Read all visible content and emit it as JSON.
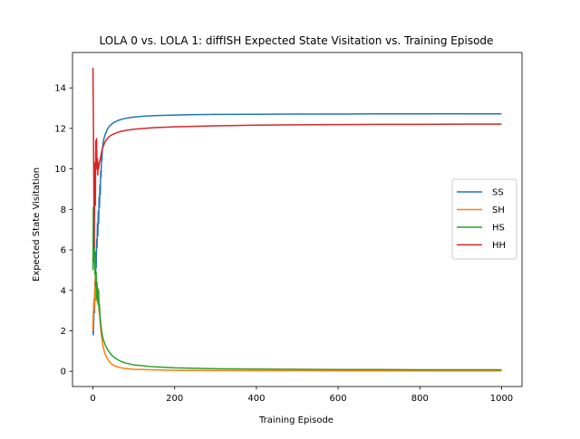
{
  "chart_data": {
    "type": "line",
    "title": "LOLA 0 vs. LOLA 1: diffISH Expected State Visitation vs. Training Episode",
    "xlabel": "Training Episode",
    "ylabel": "Expected State Visitation",
    "xlim": [
      -50,
      1050
    ],
    "ylim": [
      -0.75,
      15.75
    ],
    "xticks": [
      0,
      200,
      400,
      600,
      800,
      1000
    ],
    "yticks": [
      0,
      2,
      4,
      6,
      8,
      10,
      12,
      14
    ],
    "grid": false,
    "legend_position": "center-right",
    "series": [
      {
        "name": "SS",
        "color": "#1f77b4",
        "x": [
          0,
          1,
          2,
          3,
          4,
          5,
          6,
          7,
          8,
          9,
          10,
          11,
          12,
          13,
          14,
          15,
          16,
          17,
          18,
          19,
          20,
          21,
          22,
          23,
          24,
          25,
          27,
          30,
          35,
          40,
          45,
          50,
          60,
          70,
          80,
          90,
          100,
          120,
          150,
          200,
          250,
          300,
          400,
          500,
          600,
          700,
          800,
          900,
          1000
        ],
        "y": [
          2.1,
          1.8,
          2.5,
          3.6,
          2.9,
          4.4,
          3.8,
          5.9,
          5.1,
          6.5,
          6.1,
          7.3,
          6.7,
          7.9,
          7.3,
          8.6,
          8.1,
          9.2,
          8.7,
          9.9,
          9.6,
          10.6,
          10.4,
          11.0,
          11.1,
          11.3,
          11.5,
          11.7,
          11.95,
          12.1,
          12.2,
          12.28,
          12.38,
          12.45,
          12.5,
          12.53,
          12.56,
          12.6,
          12.63,
          12.66,
          12.68,
          12.69,
          12.7,
          12.71,
          12.71,
          12.72,
          12.72,
          12.72,
          12.72
        ]
      },
      {
        "name": "SH",
        "color": "#ff7f0e",
        "x": [
          0,
          1,
          2,
          3,
          4,
          5,
          6,
          7,
          8,
          9,
          10,
          11,
          12,
          13,
          14,
          15,
          16,
          17,
          18,
          19,
          20,
          22,
          25,
          30,
          35,
          40,
          45,
          50,
          60,
          70,
          80,
          100,
          150,
          200,
          300,
          400,
          500,
          600,
          700,
          800,
          900,
          1000
        ],
        "y": [
          2.0,
          2.9,
          3.4,
          3.0,
          3.8,
          4.1,
          4.9,
          3.5,
          4.6,
          3.9,
          4.3,
          3.4,
          3.8,
          3.3,
          3.5,
          2.9,
          3.0,
          2.5,
          2.4,
          2.1,
          1.9,
          1.6,
          1.2,
          0.85,
          0.62,
          0.48,
          0.38,
          0.3,
          0.22,
          0.17,
          0.14,
          0.1,
          0.07,
          0.05,
          0.04,
          0.03,
          0.03,
          0.02,
          0.02,
          0.02,
          0.02,
          0.02
        ]
      },
      {
        "name": "HS",
        "color": "#2ca02c",
        "x": [
          0,
          1,
          2,
          3,
          4,
          5,
          6,
          7,
          8,
          9,
          10,
          11,
          12,
          13,
          14,
          15,
          16,
          17,
          18,
          19,
          20,
          22,
          25,
          30,
          35,
          40,
          45,
          50,
          60,
          70,
          80,
          100,
          150,
          200,
          300,
          400,
          500,
          600,
          700,
          800,
          900,
          1000
        ],
        "y": [
          5.0,
          8.1,
          5.4,
          7.2,
          5.3,
          4.8,
          5.6,
          4.2,
          4.9,
          3.6,
          4.4,
          3.5,
          4.1,
          3.3,
          4.0,
          3.1,
          3.3,
          2.8,
          2.6,
          2.4,
          2.2,
          1.9,
          1.6,
          1.3,
          1.1,
          0.95,
          0.82,
          0.72,
          0.58,
          0.48,
          0.41,
          0.32,
          0.22,
          0.17,
          0.13,
          0.11,
          0.1,
          0.09,
          0.09,
          0.08,
          0.08,
          0.08
        ]
      },
      {
        "name": "HH",
        "color": "#d62728",
        "x": [
          0,
          1,
          2,
          3,
          4,
          5,
          6,
          7,
          8,
          9,
          10,
          11,
          12,
          13,
          14,
          15,
          16,
          17,
          18,
          19,
          20,
          22,
          25,
          30,
          35,
          40,
          45,
          50,
          60,
          70,
          80,
          100,
          150,
          200,
          300,
          400,
          500,
          600,
          700,
          800,
          900,
          1000
        ],
        "y": [
          15.0,
          12.9,
          9.6,
          6.1,
          8.5,
          10.3,
          8.2,
          11.4,
          10.1,
          11.5,
          10.0,
          10.5,
          9.7,
          10.3,
          10.0,
          10.2,
          10.3,
          10.4,
          10.5,
          10.6,
          10.7,
          10.9,
          11.1,
          11.35,
          11.5,
          11.6,
          11.67,
          11.72,
          11.8,
          11.86,
          11.9,
          11.96,
          12.04,
          12.08,
          12.13,
          12.16,
          12.18,
          12.19,
          12.2,
          12.2,
          12.21,
          12.21
        ]
      }
    ]
  }
}
